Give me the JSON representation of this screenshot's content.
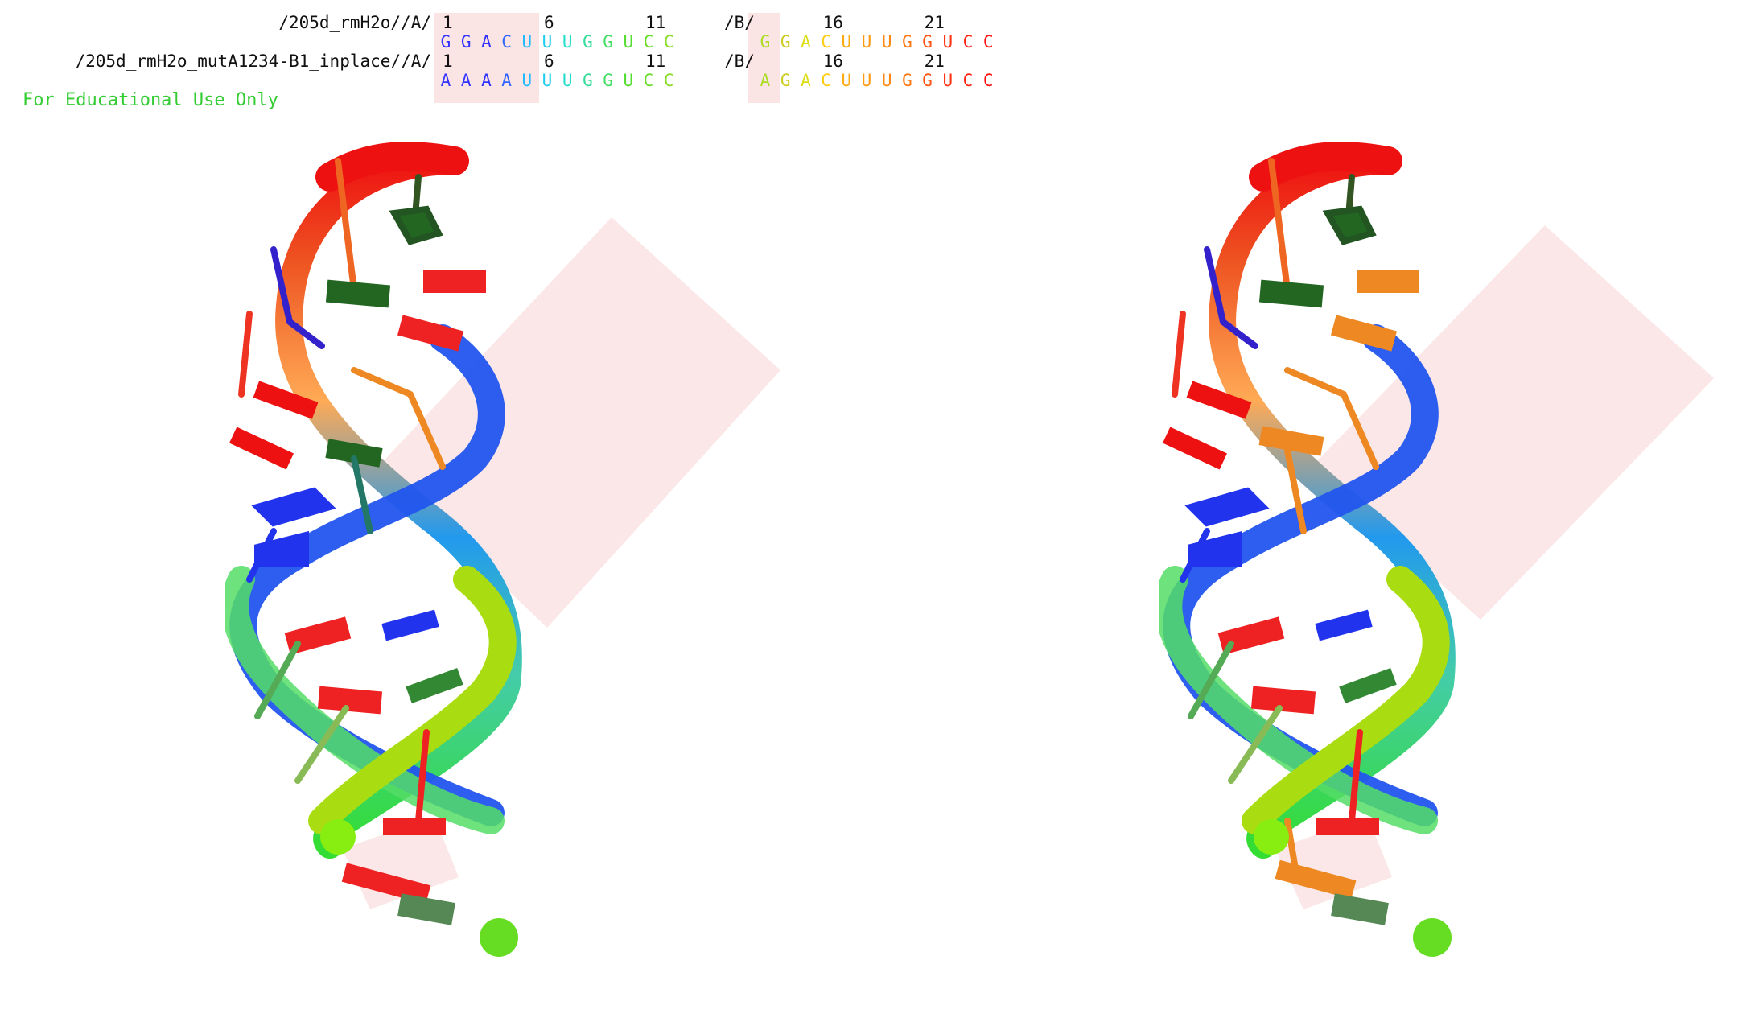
{
  "sequence_panel": {
    "rows": [
      {
        "label": "/205d_rmH2o//A/",
        "chain_a_numbers": [
          "1",
          "6",
          "11"
        ],
        "chain_b_tag": "/B/",
        "chain_b_numbers": [
          "16",
          "21"
        ],
        "chain_a_residues": [
          "G",
          "G",
          "A",
          "C",
          "U",
          "U",
          "U",
          "G",
          "G",
          "U",
          "C",
          "C"
        ],
        "chain_b_residues": [
          "G",
          "G",
          "A",
          "C",
          "U",
          "U",
          "U",
          "G",
          "G",
          "U",
          "C",
          "C"
        ]
      },
      {
        "label": "/205d_rmH2o_mutA1234-B1_inplace//A/",
        "chain_a_numbers": [
          "1",
          "6",
          "11"
        ],
        "chain_b_tag": "/B/",
        "chain_b_numbers": [
          "16",
          "21"
        ],
        "chain_a_residues": [
          "A",
          "A",
          "A",
          "A",
          "U",
          "U",
          "U",
          "G",
          "G",
          "U",
          "C",
          "C"
        ],
        "chain_b_residues": [
          "A",
          "G",
          "A",
          "C",
          "U",
          "U",
          "U",
          "G",
          "G",
          "U",
          "C",
          "C"
        ]
      }
    ],
    "residue_colors_a": [
      "#3333ff",
      "#3333ff",
      "#3333ff",
      "#3366ff",
      "#22bbff",
      "#22ccee",
      "#22ddcc",
      "#33dd99",
      "#44dd66",
      "#55dd33",
      "#66dd22",
      "#88dd22"
    ],
    "residue_colors_b": [
      "#aadd22",
      "#cccc22",
      "#dddd11",
      "#ffcc11",
      "#ffaa11",
      "#ff9911",
      "#ff8811",
      "#ff7711",
      "#ff5511",
      "#ff3311",
      "#ff2211",
      "#ff1111"
    ],
    "footer": "For Educational Use Only"
  },
  "viewport": {
    "left_title": "",
    "right_title": ""
  },
  "colors": {
    "highlight": "#fbe4e4",
    "helix_start": "#33dd33",
    "helix_end": "#ff1111",
    "strand_blue": "#2233ee"
  }
}
